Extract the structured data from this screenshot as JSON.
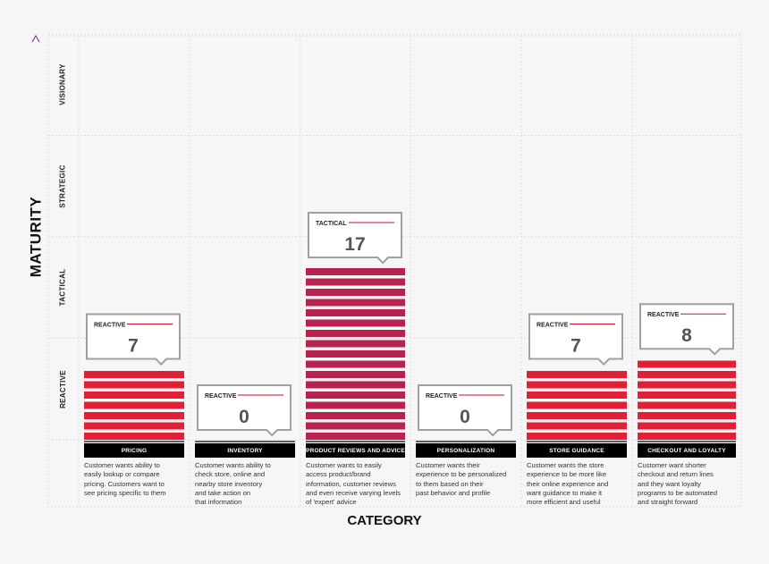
{
  "axes": {
    "y_title": "MATURITY",
    "x_title": "CATEGORY"
  },
  "chart_data": {
    "type": "bar",
    "xlabel": "CATEGORY",
    "ylabel": "MATURITY",
    "levels": [
      "REACTIVE",
      "TACTICAL",
      "STRATEGIC",
      "VISIONARY"
    ],
    "ylim": [
      0,
      40
    ],
    "categories": [
      "PRICING",
      "INVENTORY",
      "PRODUCT REVIEWS AND ADVICE",
      "PERSONALIZATION",
      "STORE GUIDANCE",
      "CHECKOUT AND LOYALTY"
    ],
    "values": [
      7,
      0,
      17,
      0,
      7,
      8
    ],
    "value_levels": [
      "REACTIVE",
      "REACTIVE",
      "TACTICAL",
      "REACTIVE",
      "REACTIVE",
      "REACTIVE"
    ],
    "descriptions": [
      [
        "Customer wants ability to",
        "easily lookup or compare",
        "pricing. Customers want to",
        "see pricing specific to them"
      ],
      [
        "Customer wants ability to",
        "check store, online and",
        "nearby store inventory",
        "and take action on",
        "that information"
      ],
      [
        "Customer wants to easily",
        "access product/brand",
        "information, customer reviews",
        "and even receive varying levels",
        "of 'expert' advice"
      ],
      [
        "Customer wants their",
        "experience to be personalized",
        "to them based on their",
        "past behavior and profile"
      ],
      [
        "Customer wants the store",
        "experience to be more like",
        "their online experience and",
        "want guidance to make it",
        "more efficient and useful"
      ],
      [
        "Customer want shorter",
        "checkout and return lines",
        "and they want loyalty",
        "programs to be automated",
        "and straight forward"
      ]
    ],
    "colors": {
      "reactive": "#e21f37",
      "tactical": "#b8224f",
      "axis_arrow": "#6b2f7a",
      "axis_line": "#c8102e",
      "callout_border": "#a0a0a0"
    }
  }
}
